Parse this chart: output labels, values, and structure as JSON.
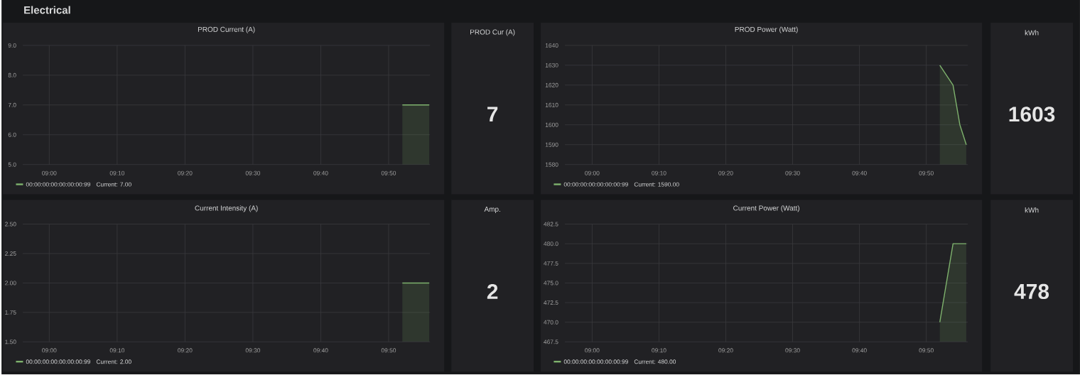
{
  "chart_data": [
    {
      "type": "other",
      "title": "Electrical"
    },
    {
      "type": "area",
      "title": "PROD Current (A)",
      "x": [
        9.867,
        9.933
      ],
      "xlim": [
        8.935,
        9.935
      ],
      "ylim": [
        5,
        9
      ],
      "xticks": [
        {
          "value": 9.0,
          "label": "09:00"
        },
        {
          "value": 9.1667,
          "label": "09:10"
        },
        {
          "value": 9.3333,
          "label": "09:20"
        },
        {
          "value": 9.5,
          "label": "09:30"
        },
        {
          "value": 9.6667,
          "label": "09:40"
        },
        {
          "value": 9.8333,
          "label": "09:50"
        }
      ],
      "yticks": [
        {
          "value": 5,
          "label": "5.0"
        },
        {
          "value": 6,
          "label": "6.0"
        },
        {
          "value": 7,
          "label": "7.0"
        },
        {
          "value": 8,
          "label": "8.0"
        },
        {
          "value": 9,
          "label": "9.0"
        }
      ],
      "series": [
        {
          "name": "00:00:00:00:00:00:00:99",
          "color": "#7eb26d",
          "values": [
            7,
            7
          ]
        }
      ],
      "grid": true,
      "legend": "bottom",
      "annotations": [
        "Current: 7.00"
      ]
    },
    {
      "type": "other",
      "title": "PROD Cur (A)",
      "annotations": [
        "7"
      ]
    },
    {
      "type": "area",
      "title": "PROD Power (Watt)",
      "x": [
        9.867,
        9.9,
        9.917,
        9.933
      ],
      "xlim": [
        8.932,
        9.937
      ],
      "ylim": [
        1580,
        1640
      ],
      "xticks": [
        {
          "value": 9.0,
          "label": "09:00"
        },
        {
          "value": 9.1667,
          "label": "09:10"
        },
        {
          "value": 9.3333,
          "label": "09:20"
        },
        {
          "value": 9.5,
          "label": "09:30"
        },
        {
          "value": 9.6667,
          "label": "09:40"
        },
        {
          "value": 9.8333,
          "label": "09:50"
        }
      ],
      "yticks": [
        1580,
        1590,
        1600,
        1610,
        1620,
        1630,
        1640
      ],
      "series": [
        {
          "name": "00:00:00:00:00:00:00:99",
          "color": "#7eb26d",
          "values": [
            1630,
            1620,
            1600,
            1590
          ]
        }
      ],
      "grid": true,
      "legend": "bottom",
      "annotations": [
        "Current: 1590.00"
      ]
    },
    {
      "type": "other",
      "title": "kWh",
      "annotations": [
        "1603"
      ]
    },
    {
      "type": "area",
      "title": "Current Intensity (A)",
      "x": [
        9.867,
        9.933
      ],
      "xlim": [
        8.935,
        9.935
      ],
      "ylim": [
        1.5,
        2.5
      ],
      "xticks": [
        {
          "value": 9.0,
          "label": "09:00"
        },
        {
          "value": 9.1667,
          "label": "09:10"
        },
        {
          "value": 9.3333,
          "label": "09:20"
        },
        {
          "value": 9.5,
          "label": "09:30"
        },
        {
          "value": 9.6667,
          "label": "09:40"
        },
        {
          "value": 9.8333,
          "label": "09:50"
        }
      ],
      "yticks": [
        {
          "value": 1.5,
          "label": "1.50"
        },
        {
          "value": 1.75,
          "label": "1.75"
        },
        {
          "value": 2.0,
          "label": "2.00"
        },
        {
          "value": 2.25,
          "label": "2.25"
        },
        {
          "value": 2.5,
          "label": "2.50"
        }
      ],
      "series": [
        {
          "name": "00:00:00:00:00:00:00:99",
          "color": "#7eb26d",
          "values": [
            2,
            2
          ]
        }
      ],
      "grid": true,
      "legend": "bottom",
      "annotations": [
        "Current: 2.00"
      ]
    },
    {
      "type": "other",
      "title": "Amp.",
      "annotations": [
        "2"
      ]
    },
    {
      "type": "area",
      "title": "Current Power (Watt)",
      "x": [
        9.867,
        9.9,
        9.933
      ],
      "xlim": [
        8.932,
        9.937
      ],
      "ylim": [
        467.5,
        482.5
      ],
      "xticks": [
        {
          "value": 9.0,
          "label": "09:00"
        },
        {
          "value": 9.1667,
          "label": "09:10"
        },
        {
          "value": 9.3333,
          "label": "09:20"
        },
        {
          "value": 9.5,
          "label": "09:30"
        },
        {
          "value": 9.6667,
          "label": "09:40"
        },
        {
          "value": 9.8333,
          "label": "09:50"
        }
      ],
      "yticks": [
        {
          "value": 467.5,
          "label": "467.5"
        },
        {
          "value": 470,
          "label": "470.0"
        },
        {
          "value": 472.5,
          "label": "472.5"
        },
        {
          "value": 475,
          "label": "475.0"
        },
        {
          "value": 477.5,
          "label": "477.5"
        },
        {
          "value": 480,
          "label": "480.0"
        },
        {
          "value": 482.5,
          "label": "482.5"
        }
      ],
      "series": [
        {
          "name": "00:00:00:00:00:00:00:99",
          "color": "#7eb26d",
          "values": [
            470,
            480,
            480
          ]
        }
      ],
      "grid": true,
      "legend": "bottom",
      "annotations": [
        "Current: 480.00"
      ]
    },
    {
      "type": "other",
      "title": "kWh",
      "annotations": [
        "478"
      ]
    }
  ]
}
